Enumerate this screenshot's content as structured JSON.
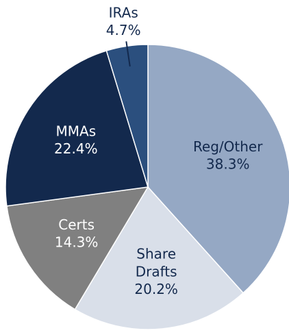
{
  "chart_data": {
    "type": "pie",
    "categories": [
      "Reg/Other",
      "Share Drafts",
      "Certs",
      "MMAs",
      "IRAs"
    ],
    "values": [
      38.3,
      20.2,
      14.3,
      22.4,
      4.7
    ],
    "value_labels": [
      "38.3%",
      "20.2%",
      "14.3%",
      "22.4%",
      "4.7%"
    ],
    "colors": [
      "#95a8c4",
      "#d9dfe9",
      "#808080",
      "#13294d",
      "#2b4f7e"
    ],
    "label_colors": [
      "#13294d",
      "#13294d",
      "#ffffff",
      "#ffffff",
      "#13294d"
    ]
  }
}
